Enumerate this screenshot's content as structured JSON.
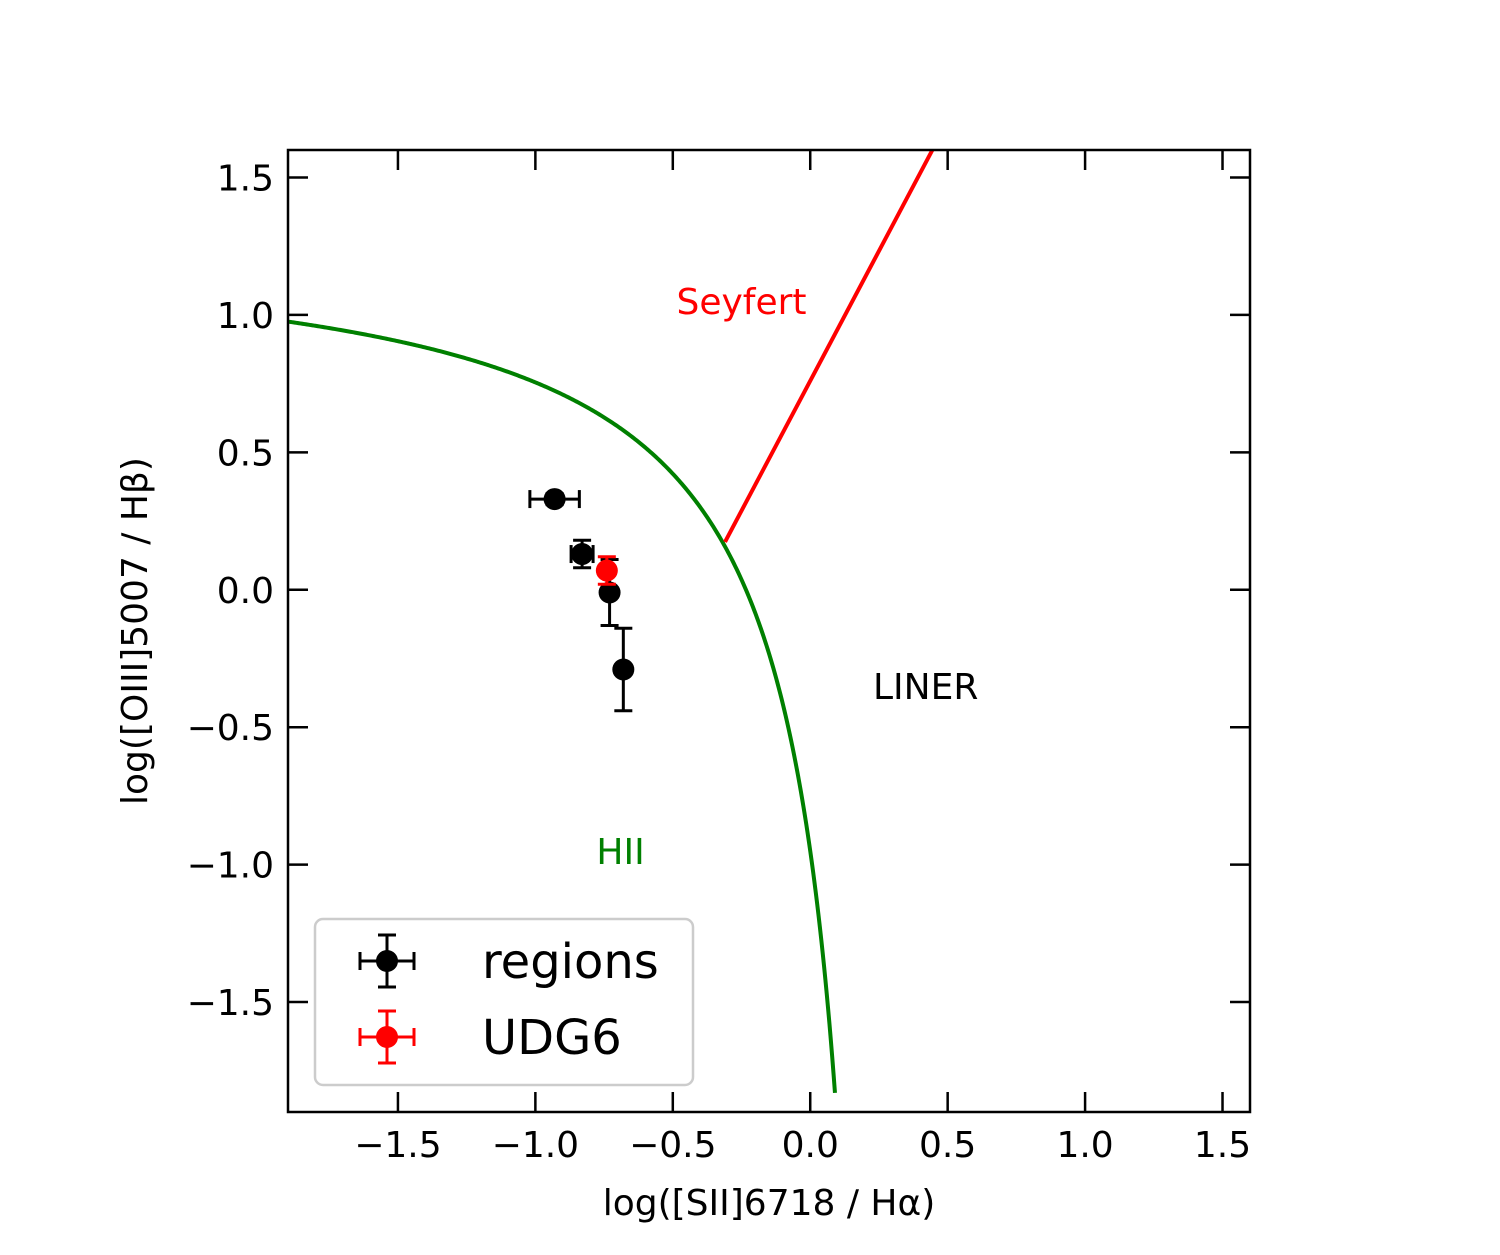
{
  "chart_data": {
    "type": "scatter",
    "xlabel": "log([SII]6718 / Hα)",
    "ylabel": "log([OIII]5007 / Hβ)",
    "xlim": [
      -1.9,
      1.6
    ],
    "ylim": [
      -1.9,
      1.6
    ],
    "xticks": [
      -1.5,
      -1.0,
      -0.5,
      0.0,
      0.5,
      1.0,
      1.5
    ],
    "yticks": [
      -1.5,
      -1.0,
      -0.5,
      0.0,
      0.5,
      1.0,
      1.5
    ],
    "xtick_labels": [
      "−1.5",
      "−1.0",
      "−0.5",
      "0.0",
      "0.5",
      "1.0",
      "1.5"
    ],
    "ytick_labels": [
      "−1.5",
      "−1.0",
      "−0.5",
      "0.0",
      "0.5",
      "1.0",
      "1.5"
    ],
    "grid": false,
    "series": [
      {
        "name": "regions",
        "color": "#000000",
        "points": [
          {
            "x": -0.93,
            "y": 0.33,
            "xerr": 0.09,
            "yerr": 0.02
          },
          {
            "x": -0.83,
            "y": 0.13,
            "xerr": 0.04,
            "yerr": 0.05
          },
          {
            "x": -0.73,
            "y": -0.01,
            "xerr": 0.0,
            "yerr": 0.12
          },
          {
            "x": -0.68,
            "y": -0.29,
            "xerr": 0.0,
            "yerr": 0.15
          }
        ]
      },
      {
        "name": "UDG6",
        "color": "#ff0000",
        "points": [
          {
            "x": -0.74,
            "y": 0.07,
            "xerr": 0.0,
            "yerr": 0.05
          }
        ]
      }
    ],
    "curves": [
      {
        "name": "kewley-extreme-starburst",
        "color": "#008000",
        "formula": "0.72/(x-0.32)+1.30",
        "x_max": 0.09
      },
      {
        "name": "seyfert-liner-line",
        "color": "#ff0000",
        "formula": "1.89*x+0.76",
        "x_min": -0.31
      }
    ],
    "annotations": [
      {
        "text": "Seyfert",
        "x": -0.25,
        "y": 1.05,
        "color": "#ff0000"
      },
      {
        "text": "LINER",
        "x": 0.42,
        "y": -0.35,
        "color": "#000000"
      },
      {
        "text": "HII",
        "x": -0.69,
        "y": -0.95,
        "color": "#008000"
      }
    ],
    "legend": {
      "placement": "lower-left",
      "entries": [
        "regions",
        "UDG6"
      ]
    }
  }
}
